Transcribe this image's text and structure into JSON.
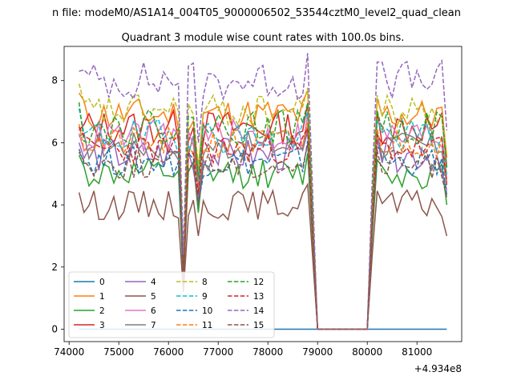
{
  "figure": {
    "suptitle": "n file: modeM0/AS1A14_004T05_9000006502_53544cztM0_level2_quad_clean",
    "title": "Quadrant 3 module wise count rates with 100.0s bins."
  },
  "chart_data": {
    "type": "line",
    "title": "Quadrant 3 module wise count rates with 100.0s bins.",
    "xlabel": "",
    "ylabel": "",
    "x_offset_label": "+4.934e8",
    "xlim": [
      73900,
      81900
    ],
    "ylim": [
      -0.4,
      9.1
    ],
    "xticks": [
      74000,
      75000,
      76000,
      77000,
      78000,
      79000,
      80000,
      81000
    ],
    "xtick_labels": [
      "74000",
      "75000",
      "76000",
      "77000",
      "78000",
      "79000",
      "80000",
      "81000"
    ],
    "yticks": [
      0,
      2,
      4,
      6,
      8
    ],
    "ytick_labels": [
      "0",
      "2",
      "4",
      "6",
      "8"
    ],
    "grid": false,
    "legend_position": "lower-left",
    "segments": [
      [
        74200,
        78800
      ],
      [
        79000,
        80000
      ],
      [
        80100,
        81600
      ]
    ],
    "dips": [
      [
        76300,
        0.3
      ],
      [
        76600,
        0.75
      ]
    ],
    "step": 100,
    "series": [
      {
        "name": "0",
        "color": "#1f77b4",
        "dash": "solid",
        "zero": true,
        "base": 0,
        "amp": 0
      },
      {
        "name": "1",
        "color": "#ff7f0e",
        "dash": "solid",
        "base": 6.9,
        "amp": 0.35,
        "start": 7.6,
        "seed": 11
      },
      {
        "name": "2",
        "color": "#2ca02c",
        "dash": "solid",
        "base": 5.0,
        "amp": 0.3,
        "start": 5.6,
        "seed": 12
      },
      {
        "name": "3",
        "color": "#d62728",
        "dash": "solid",
        "base": 6.5,
        "amp": 0.35,
        "start": 6.4,
        "seed": 13
      },
      {
        "name": "4",
        "color": "#9467bd",
        "dash": "solid",
        "base": 5.6,
        "amp": 0.35,
        "start": 6.0,
        "seed": 14
      },
      {
        "name": "5",
        "color": "#8c564b",
        "dash": "solid",
        "base": 4.0,
        "amp": 0.3,
        "start": 4.4,
        "seed": 15,
        "end": 3.0
      },
      {
        "name": "6",
        "color": "#e377c2",
        "dash": "solid",
        "base": 6.2,
        "amp": 0.35,
        "start": 6.3,
        "seed": 16
      },
      {
        "name": "7",
        "color": "#7f7f7f",
        "dash": "solid",
        "base": 5.9,
        "amp": 0.3,
        "start": 6.2,
        "seed": 17
      },
      {
        "name": "8",
        "color": "#bcbd22",
        "dash": "dashed",
        "base": 7.0,
        "amp": 0.35,
        "start": 7.9,
        "seed": 18
      },
      {
        "name": "9",
        "color": "#17becf",
        "dash": "dashed",
        "base": 6.2,
        "amp": 0.35,
        "start": 7.1,
        "seed": 19
      },
      {
        "name": "10",
        "color": "#1f77b4",
        "dash": "dashed",
        "base": 5.4,
        "amp": 0.3,
        "start": 5.8,
        "seed": 20
      },
      {
        "name": "11",
        "color": "#ff7f0e",
        "dash": "dashed",
        "base": 6.0,
        "amp": 0.3,
        "start": 6.6,
        "seed": 21
      },
      {
        "name": "12",
        "color": "#2ca02c",
        "dash": "dashed",
        "base": 6.5,
        "amp": 0.35,
        "start": 7.3,
        "seed": 22
      },
      {
        "name": "13",
        "color": "#d62728",
        "dash": "dashed",
        "base": 5.8,
        "amp": 0.3,
        "start": 6.5,
        "seed": 23
      },
      {
        "name": "14",
        "color": "#9467bd",
        "dash": "dashed",
        "base": 8.0,
        "amp": 0.4,
        "start": 8.3,
        "seed": 24
      },
      {
        "name": "15",
        "color": "#8c564b",
        "dash": "dashed",
        "base": 5.3,
        "amp": 0.3,
        "start": 5.7,
        "seed": 25
      }
    ]
  }
}
